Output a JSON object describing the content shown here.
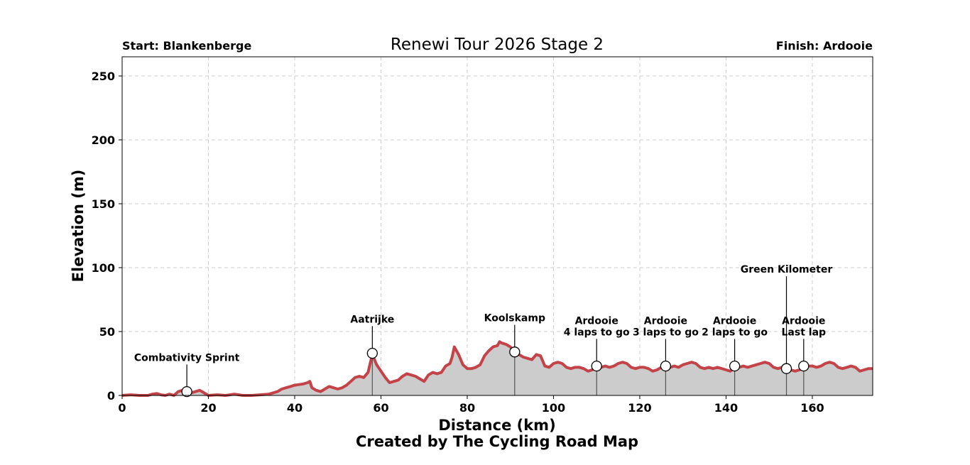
{
  "chart_data": {
    "type": "area",
    "title": "Renewi Tour 2026 Stage 2",
    "start_label": "Start: Blankenberge",
    "finish_label": "Finish: Ardooie",
    "xlabel": "Distance (km)",
    "ylabel": "Elevation (m)",
    "credit": "Created by The Cycling Road Map",
    "xlim": [
      0,
      174
    ],
    "ylim": [
      0,
      265
    ],
    "xticks": [
      0,
      20,
      40,
      60,
      80,
      100,
      120,
      140,
      160
    ],
    "yticks": [
      0,
      50,
      100,
      150,
      200,
      250
    ],
    "grid": true,
    "colors": {
      "line": "#c44348",
      "fill": "#cccccc",
      "marker_line": "#555555"
    },
    "profile": [
      [
        0,
        0
      ],
      [
        2,
        0.5
      ],
      [
        4,
        0
      ],
      [
        6,
        0
      ],
      [
        7,
        1
      ],
      [
        8,
        1.5
      ],
      [
        9,
        0.5
      ],
      [
        10,
        0
      ],
      [
        11,
        1
      ],
      [
        12,
        0
      ],
      [
        13,
        3
      ],
      [
        14,
        4
      ],
      [
        15,
        3
      ],
      [
        16,
        2
      ],
      [
        17,
        3
      ],
      [
        18,
        4
      ],
      [
        19,
        2
      ],
      [
        20,
        0
      ],
      [
        22,
        0.5
      ],
      [
        24,
        0
      ],
      [
        26,
        1
      ],
      [
        28,
        0
      ],
      [
        30,
        0
      ],
      [
        32,
        0.5
      ],
      [
        34,
        1
      ],
      [
        35,
        2
      ],
      [
        36,
        3
      ],
      [
        37,
        5
      ],
      [
        38,
        6
      ],
      [
        39,
        7
      ],
      [
        40,
        8
      ],
      [
        41,
        8.5
      ],
      [
        42,
        9
      ],
      [
        43,
        10
      ],
      [
        43.5,
        11
      ],
      [
        44,
        6
      ],
      [
        45,
        4
      ],
      [
        46,
        3
      ],
      [
        47,
        5
      ],
      [
        48,
        7
      ],
      [
        49,
        6
      ],
      [
        50,
        5
      ],
      [
        51,
        6
      ],
      [
        52,
        8
      ],
      [
        53,
        11
      ],
      [
        54,
        14
      ],
      [
        55,
        15
      ],
      [
        56,
        14
      ],
      [
        57,
        18
      ],
      [
        57.5,
        25
      ],
      [
        58,
        32
      ],
      [
        58.5,
        28
      ],
      [
        59,
        24
      ],
      [
        60,
        19
      ],
      [
        61,
        14
      ],
      [
        62,
        10
      ],
      [
        63,
        11
      ],
      [
        64,
        12
      ],
      [
        65,
        15
      ],
      [
        66,
        17
      ],
      [
        67,
        16
      ],
      [
        68,
        15
      ],
      [
        69,
        13
      ],
      [
        70,
        11
      ],
      [
        71,
        16
      ],
      [
        72,
        18
      ],
      [
        73,
        17
      ],
      [
        74,
        18
      ],
      [
        75,
        23
      ],
      [
        76,
        25
      ],
      [
        76.5,
        30
      ],
      [
        77,
        38
      ],
      [
        78,
        32
      ],
      [
        79,
        24
      ],
      [
        80,
        21
      ],
      [
        81,
        21
      ],
      [
        82,
        22
      ],
      [
        83,
        24
      ],
      [
        84,
        31
      ],
      [
        85,
        35
      ],
      [
        86,
        38
      ],
      [
        87,
        39
      ],
      [
        87.5,
        42
      ],
      [
        88,
        41
      ],
      [
        89,
        40
      ],
      [
        90,
        38
      ],
      [
        91,
        34
      ],
      [
        92,
        32
      ],
      [
        93,
        30
      ],
      [
        94,
        29
      ],
      [
        95,
        28
      ],
      [
        96,
        32
      ],
      [
        97,
        31
      ],
      [
        98,
        23
      ],
      [
        99,
        22
      ],
      [
        100,
        25
      ],
      [
        101,
        26
      ],
      [
        102,
        25
      ],
      [
        103,
        22
      ],
      [
        104,
        21
      ],
      [
        105,
        22
      ],
      [
        106,
        22
      ],
      [
        107,
        21
      ],
      [
        108,
        19
      ],
      [
        109,
        20
      ],
      [
        110,
        23
      ],
      [
        111,
        22
      ],
      [
        112,
        23
      ],
      [
        113,
        22
      ],
      [
        114,
        23
      ],
      [
        115,
        25
      ],
      [
        116,
        26
      ],
      [
        117,
        25
      ],
      [
        118,
        22
      ],
      [
        119,
        21
      ],
      [
        120,
        22
      ],
      [
        121,
        22
      ],
      [
        122,
        21
      ],
      [
        123,
        19
      ],
      [
        124,
        20
      ],
      [
        125,
        22
      ],
      [
        126,
        23
      ],
      [
        127,
        22
      ],
      [
        128,
        23
      ],
      [
        129,
        22
      ],
      [
        130,
        24
      ],
      [
        131,
        25
      ],
      [
        132,
        26
      ],
      [
        133,
        25
      ],
      [
        134,
        22
      ],
      [
        135,
        21
      ],
      [
        136,
        22
      ],
      [
        137,
        21
      ],
      [
        138,
        22
      ],
      [
        139,
        21
      ],
      [
        140,
        20
      ],
      [
        141,
        19
      ],
      [
        142,
        22
      ],
      [
        143,
        22
      ],
      [
        144,
        23
      ],
      [
        145,
        22
      ],
      [
        146,
        23
      ],
      [
        147,
        24
      ],
      [
        148,
        25
      ],
      [
        149,
        26
      ],
      [
        150,
        25
      ],
      [
        151,
        22
      ],
      [
        152,
        21
      ],
      [
        153,
        22
      ],
      [
        154,
        21
      ],
      [
        155,
        20
      ],
      [
        156,
        19
      ],
      [
        157,
        20
      ],
      [
        158,
        22
      ],
      [
        159,
        23
      ],
      [
        160,
        23
      ],
      [
        161,
        22
      ],
      [
        162,
        23
      ],
      [
        163,
        25
      ],
      [
        164,
        26
      ],
      [
        165,
        25
      ],
      [
        166,
        22
      ],
      [
        167,
        21
      ],
      [
        168,
        22
      ],
      [
        169,
        23
      ],
      [
        170,
        22
      ],
      [
        171,
        19
      ],
      [
        172,
        20
      ],
      [
        173,
        21
      ],
      [
        174,
        21
      ]
    ],
    "markers": [
      {
        "km": 15,
        "elevation": 3,
        "label": [
          "Combativity Sprint"
        ],
        "label_y": 27
      },
      {
        "km": 58,
        "elevation": 33,
        "label": [
          "Aatrijke"
        ],
        "label_y": 57
      },
      {
        "km": 91,
        "elevation": 34,
        "label": [
          "Koolskamp"
        ],
        "label_y": 58
      },
      {
        "km": 110,
        "elevation": 23,
        "label": [
          "Ardooie",
          "4 laps to go"
        ],
        "label_y": 47
      },
      {
        "km": 126,
        "elevation": 23,
        "label": [
          "Ardooie",
          "3 laps to go"
        ],
        "label_y": 47
      },
      {
        "km": 142,
        "elevation": 23,
        "label": [
          "Ardooie",
          "2 laps to go"
        ],
        "label_y": 47
      },
      {
        "km": 154,
        "elevation": 21,
        "label": [
          "Green Kilometer"
        ],
        "label_y": 96
      },
      {
        "km": 158,
        "elevation": 23,
        "label": [
          "Ardooie",
          "Last lap"
        ],
        "label_y": 47
      }
    ]
  }
}
